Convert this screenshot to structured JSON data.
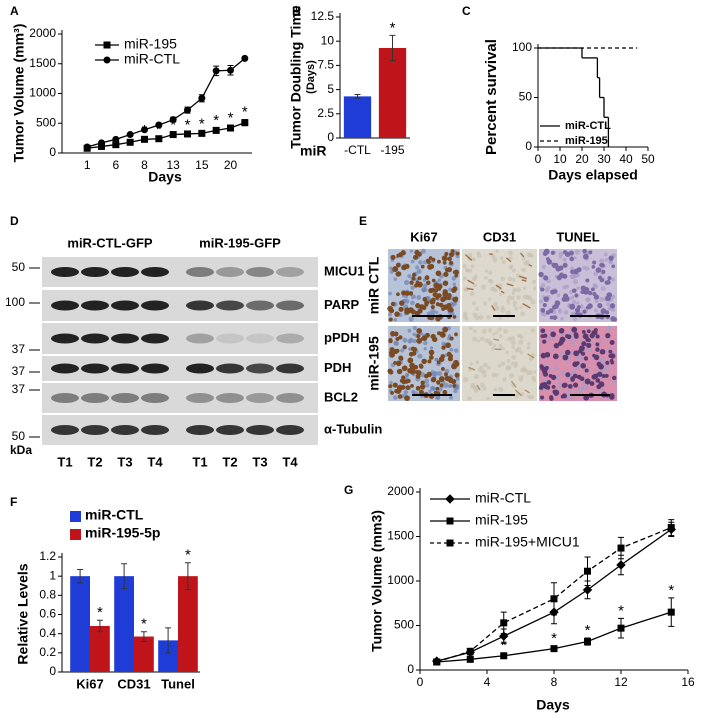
{
  "chart_data": [
    {
      "panel": "A",
      "type": "line",
      "ylabel": "Tumor Volume (mm³)",
      "xlabel": "Days",
      "categories": [
        "1",
        null,
        "6",
        null,
        "8",
        null,
        "13",
        null,
        "15",
        null,
        "20",
        null
      ],
      "ylim": [
        0,
        2000
      ],
      "yticks": [
        0,
        500,
        1000,
        1500,
        2000
      ],
      "legend": "upper left",
      "series": [
        {
          "name": "miR-195",
          "color": "#000000",
          "marker": "square",
          "dash": false,
          "values": [
            80,
            110,
            140,
            180,
            230,
            240,
            310,
            320,
            330,
            380,
            420,
            510
          ],
          "errors": [
            10,
            10,
            15,
            20,
            20,
            25,
            30,
            25,
            30,
            40,
            45,
            50
          ]
        },
        {
          "name": "miR-CTL",
          "color": "#000000",
          "marker": "circle",
          "dash": false,
          "values": [
            100,
            170,
            230,
            310,
            390,
            470,
            560,
            720,
            920,
            1380,
            1390,
            1590
          ],
          "errors": [
            10,
            15,
            20,
            20,
            25,
            30,
            40,
            50,
            60,
            80,
            80,
            20
          ]
        }
      ],
      "annotations": [
        {
          "text": "*",
          "series": 0,
          "index": 4
        },
        {
          "text": "*",
          "series": 0,
          "index": 5
        },
        {
          "text": "*",
          "series": 0,
          "index": 6
        },
        {
          "text": "*",
          "series": 0,
          "index": 7
        },
        {
          "text": "*",
          "series": 0,
          "index": 8
        },
        {
          "text": "*",
          "series": 0,
          "index": 9
        },
        {
          "text": "*",
          "series": 0,
          "index": 10
        },
        {
          "text": "*",
          "series": 0,
          "index": 11
        }
      ]
    },
    {
      "panel": "B",
      "type": "bar",
      "ylabel": [
        "Tumor Doubling Time",
        "(Days)"
      ],
      "xlabel": "miR",
      "categories": [
        "-CTL",
        "-195"
      ],
      "values": [
        4.3,
        9.3
      ],
      "errors": [
        0.2,
        1.3
      ],
      "colors": [
        "#1f3dd6",
        "#c0141b"
      ],
      "ylim": [
        0,
        12.5
      ],
      "yticks": [
        0,
        2.5,
        5,
        7.5,
        10,
        12.5
      ],
      "annotations": [
        {
          "text": "*",
          "index": 1
        }
      ]
    },
    {
      "panel": "C",
      "type": "step",
      "ylabel": "Percent survival",
      "xlabel": "Days elapsed",
      "xlim": [
        0,
        50
      ],
      "xticks": [
        0,
        10,
        20,
        30,
        40,
        50
      ],
      "ylim": [
        0,
        100
      ],
      "yticks": [
        0,
        50,
        100
      ],
      "legend": "lower left",
      "series": [
        {
          "name": "miR-CTL",
          "color": "#000000",
          "dash": false,
          "x": [
            0,
            20,
            27,
            28,
            30,
            32
          ],
          "values": [
            100,
            90,
            70,
            50,
            30,
            0
          ]
        },
        {
          "name": "miR-195",
          "color": "#000000",
          "dash": true,
          "x": [
            0,
            45
          ],
          "values": [
            100,
            100
          ]
        }
      ]
    },
    {
      "panel": "F",
      "type": "bar",
      "ylabel": "Relative Levels",
      "categories": [
        "Ki67",
        "CD31",
        "Tunel"
      ],
      "ylim": [
        0,
        1.2
      ],
      "yticks": [
        0,
        0.2,
        0.4,
        0.6,
        0.8,
        1,
        1.2
      ],
      "legend": "top",
      "series": [
        {
          "name": "miR-CTL",
          "color": "#1f3dd6",
          "values": [
            1,
            1,
            0.33
          ],
          "errors": [
            0.07,
            0.13,
            0.13
          ]
        },
        {
          "name": "miR-195-5p",
          "color": "#c0141b",
          "values": [
            0.48,
            0.37,
            1
          ],
          "errors": [
            0.06,
            0.05,
            0.14
          ]
        }
      ],
      "annotations": [
        {
          "text": "*",
          "series": 1,
          "index": 0
        },
        {
          "text": "*",
          "series": 1,
          "index": 1
        },
        {
          "text": "*",
          "series": 1,
          "index": 2
        }
      ]
    },
    {
      "panel": "G",
      "type": "line",
      "ylabel": "Tumor Volume (mm3)",
      "xlabel": "Days",
      "x": [
        1,
        3,
        5,
        8,
        10,
        12,
        15
      ],
      "xlim": [
        0,
        16
      ],
      "xticks": [
        0,
        4,
        8,
        12,
        16
      ],
      "ylim": [
        0,
        2000
      ],
      "yticks": [
        0,
        500,
        1000,
        1500,
        2000
      ],
      "legend": "upper left",
      "series": [
        {
          "name": "miR-CTL",
          "color": "#000000",
          "marker": "diamond",
          "dash": false,
          "values": [
            100,
            200,
            380,
            650,
            900,
            1180,
            1580
          ],
          "errors": [
            20,
            30,
            80,
            130,
            100,
            110,
            80
          ]
        },
        {
          "name": "miR-195",
          "color": "#000000",
          "marker": "square",
          "dash": false,
          "values": [
            90,
            120,
            160,
            240,
            320,
            470,
            650
          ],
          "errors": [
            10,
            20,
            30,
            30,
            40,
            110,
            160
          ]
        },
        {
          "name": "miR-195+MICU1",
          "color": "#000000",
          "marker": "square",
          "dash": true,
          "values": [
            90,
            210,
            530,
            800,
            1110,
            1370,
            1600
          ],
          "errors": [
            10,
            30,
            120,
            180,
            160,
            120,
            90
          ]
        }
      ],
      "annotations": [
        {
          "text": "*",
          "series": 1,
          "index": 2
        },
        {
          "text": "*",
          "series": 1,
          "index": 3
        },
        {
          "text": "*",
          "series": 1,
          "index": 4
        },
        {
          "text": "*",
          "series": 1,
          "index": 5
        },
        {
          "text": "*",
          "series": 1,
          "index": 6
        }
      ]
    }
  ],
  "blot": {
    "panel": "D",
    "groups": [
      "miR-CTL-GFP",
      "miR-195-GFP"
    ],
    "rows": [
      {
        "label": "MICU1",
        "marker": "50"
      },
      {
        "label": "PARP",
        "marker": "100"
      },
      {
        "label": "pPDH",
        "marker": "37"
      },
      {
        "label": "PDH",
        "marker": "37"
      },
      {
        "label": "BCL2",
        "marker": "37"
      },
      {
        "label": "α-Tubulin",
        "marker": "50"
      }
    ],
    "marker_unit": "kDa",
    "lanes": [
      "T1",
      "T2",
      "T3",
      "T4",
      "T1",
      "T2",
      "T3",
      "T4"
    ]
  },
  "histology": {
    "panel": "E",
    "columns": [
      "Ki67",
      "CD31",
      "TUNEL"
    ],
    "rows": [
      "miR CTL",
      "miR-195"
    ]
  }
}
